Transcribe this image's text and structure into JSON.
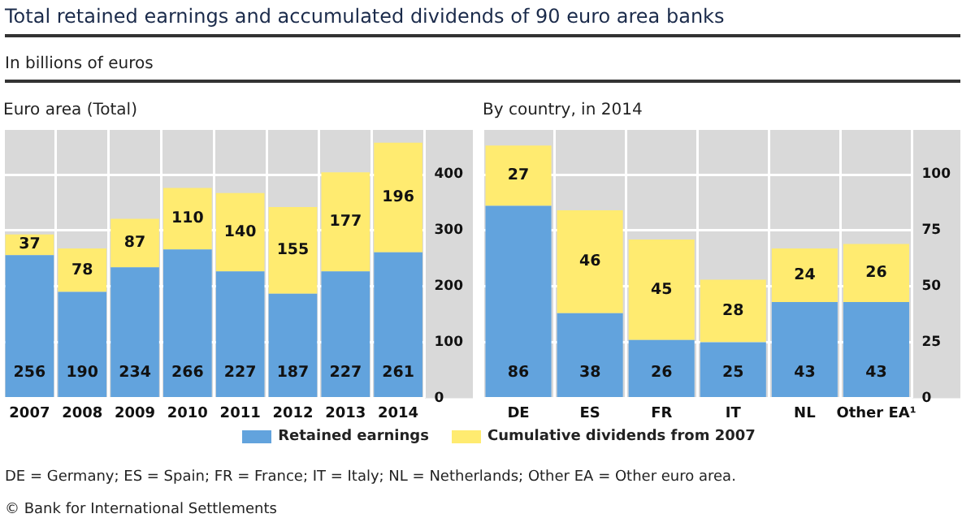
{
  "chart_data": [
    {
      "type": "bar",
      "title": "Euro area (Total)",
      "categories": [
        "2007",
        "2008",
        "2009",
        "2010",
        "2011",
        "2012",
        "2013",
        "2014"
      ],
      "series": [
        {
          "name": "Retained earnings",
          "color": "#62a3dd",
          "values": [
            256,
            190,
            234,
            266,
            227,
            187,
            227,
            261
          ]
        },
        {
          "name": "Cumulative dividends from 2007",
          "color": "#ffeb70",
          "values": [
            37,
            78,
            87,
            110,
            140,
            155,
            177,
            196
          ]
        }
      ],
      "stacked": true,
      "ylim": [
        0,
        480
      ],
      "yticks": [
        0,
        100,
        200,
        300,
        400
      ],
      "grid": true,
      "legend": "bottom",
      "data_labels": true,
      "annotations": [
        "Total retained earnings and accumulated dividends of 90 euro area banks",
        "In billions of euros",
        "DE = Germany; ES = Spain; FR = France; IT = Italy; NL = Netherlands; Other EA = Other euro area.",
        "© Bank for International Settlements"
      ]
    },
    {
      "type": "bar",
      "title": "By country, in 2014",
      "categories": [
        "DE",
        "ES",
        "FR",
        "IT",
        "NL",
        "Other EA¹"
      ],
      "series": [
        {
          "color": "#62a3dd",
          "values": [
            86,
            38,
            26,
            25,
            43,
            43
          ]
        },
        {
          "color": "#ffeb70",
          "values": [
            27,
            46,
            45,
            28,
            24,
            26
          ]
        }
      ],
      "stacked": true,
      "ylim": [
        0,
        120
      ],
      "yticks": [
        0,
        25,
        50,
        75,
        100
      ],
      "grid": true,
      "data_labels": true
    }
  ]
}
